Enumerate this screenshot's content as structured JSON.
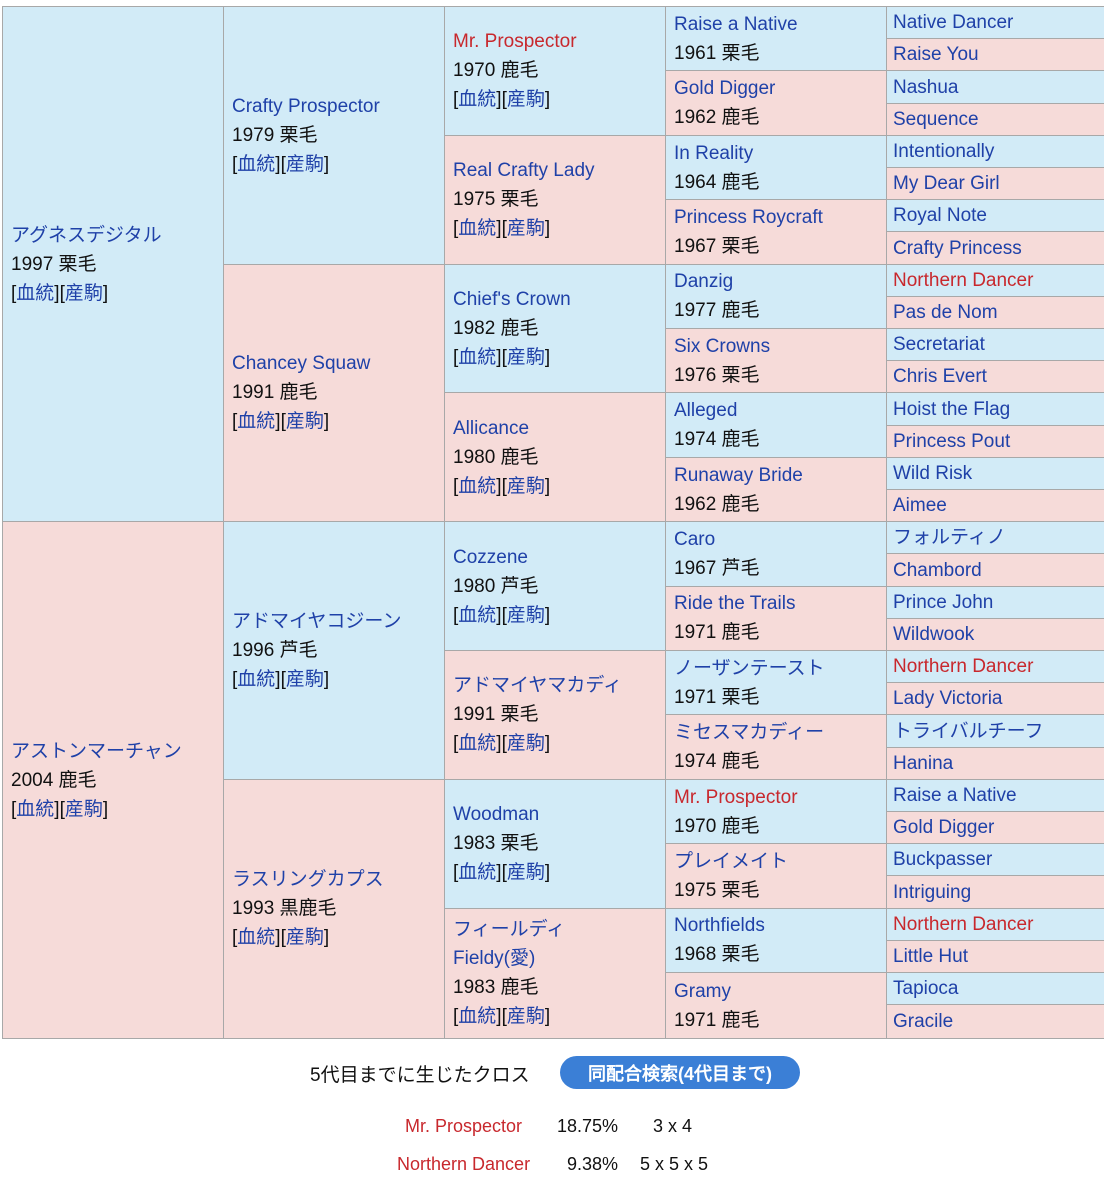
{
  "g1": [
    {
      "name": "アグネスデジタル",
      "year": "1997 栗毛",
      "sex": "m"
    },
    {
      "name": "アストンマーチャン",
      "year": "2004 鹿毛",
      "sex": "f"
    }
  ],
  "g2": [
    {
      "name": "Crafty Prospector",
      "year": "1979 栗毛",
      "sex": "m"
    },
    {
      "name": "Chancey Squaw",
      "year": "1991 鹿毛",
      "sex": "f"
    },
    {
      "name": "アドマイヤコジーン",
      "year": "1996 芦毛",
      "sex": "m"
    },
    {
      "name": "ラスリングカプス",
      "year": "1993 黒鹿毛",
      "sex": "f"
    }
  ],
  "g3": [
    {
      "name": "Mr. Prospector",
      "year": "1970 鹿毛",
      "sex": "m",
      "red": true
    },
    {
      "name": "Real Crafty Lady",
      "year": "1975 栗毛",
      "sex": "f"
    },
    {
      "name": "Chief's Crown",
      "year": "1982 鹿毛",
      "sex": "m"
    },
    {
      "name": "Allicance",
      "year": "1980 鹿毛",
      "sex": "f"
    },
    {
      "name": "Cozzene",
      "year": "1980 芦毛",
      "sex": "m"
    },
    {
      "name": "アドマイヤマカディ",
      "year": "1991 栗毛",
      "sex": "f"
    },
    {
      "name": "Woodman",
      "year": "1983 栗毛",
      "sex": "m"
    },
    {
      "name": "フィールディ",
      "name2": "Fieldy(愛)",
      "year": "1983 鹿毛",
      "sex": "f"
    }
  ],
  "g4": [
    {
      "name": "Raise a Native",
      "year": "1961 栗毛",
      "sex": "m"
    },
    {
      "name": "Gold Digger",
      "year": "1962 鹿毛",
      "sex": "f"
    },
    {
      "name": "In Reality",
      "year": "1964 鹿毛",
      "sex": "m"
    },
    {
      "name": "Princess Roycraft",
      "year": "1967 栗毛",
      "sex": "f"
    },
    {
      "name": "Danzig",
      "year": "1977 鹿毛",
      "sex": "m"
    },
    {
      "name": "Six Crowns",
      "year": "1976 栗毛",
      "sex": "f"
    },
    {
      "name": "Alleged",
      "year": "1974 鹿毛",
      "sex": "m"
    },
    {
      "name": "Runaway Bride",
      "year": "1962 鹿毛",
      "sex": "f"
    },
    {
      "name": "Caro",
      "year": "1967 芦毛",
      "sex": "m"
    },
    {
      "name": "Ride the Trails",
      "year": "1971 鹿毛",
      "sex": "f"
    },
    {
      "name": "ノーザンテースト",
      "year": "1971 栗毛",
      "sex": "m"
    },
    {
      "name": "ミセスマカディー",
      "year": "1974 鹿毛",
      "sex": "f"
    },
    {
      "name": "Mr. Prospector",
      "year": "1970 鹿毛",
      "sex": "m",
      "red": true
    },
    {
      "name": "プレイメイト",
      "year": "1975 栗毛",
      "sex": "f"
    },
    {
      "name": "Northfields",
      "year": "1968 栗毛",
      "sex": "m"
    },
    {
      "name": "Gramy",
      "year": "1971 鹿毛",
      "sex": "f"
    }
  ],
  "g5": [
    {
      "name": "Native Dancer",
      "sex": "m"
    },
    {
      "name": "Raise You",
      "sex": "f"
    },
    {
      "name": "Nashua",
      "sex": "m"
    },
    {
      "name": "Sequence",
      "sex": "f"
    },
    {
      "name": "Intentionally",
      "sex": "m"
    },
    {
      "name": "My Dear Girl",
      "sex": "f"
    },
    {
      "name": "Royal Note",
      "sex": "m"
    },
    {
      "name": "Crafty Princess",
      "sex": "f"
    },
    {
      "name": "Northern Dancer",
      "sex": "m",
      "red": true
    },
    {
      "name": "Pas de Nom",
      "sex": "f"
    },
    {
      "name": "Secretariat",
      "sex": "m"
    },
    {
      "name": "Chris Evert",
      "sex": "f"
    },
    {
      "name": "Hoist the Flag",
      "sex": "m"
    },
    {
      "name": "Princess Pout",
      "sex": "f"
    },
    {
      "name": "Wild Risk",
      "sex": "m"
    },
    {
      "name": "Aimee",
      "sex": "f"
    },
    {
      "name": "フォルティノ",
      "sex": "m"
    },
    {
      "name": "Chambord",
      "sex": "f"
    },
    {
      "name": "Prince John",
      "sex": "m"
    },
    {
      "name": "Wildwook",
      "sex": "f"
    },
    {
      "name": "Northern Dancer",
      "sex": "m",
      "red": true
    },
    {
      "name": "Lady Victoria",
      "sex": "f"
    },
    {
      "name": "トライバルチーフ",
      "sex": "m"
    },
    {
      "name": "Hanina",
      "sex": "f"
    },
    {
      "name": "Raise a Native",
      "sex": "m"
    },
    {
      "name": "Gold Digger",
      "sex": "f"
    },
    {
      "name": "Buckpasser",
      "sex": "m"
    },
    {
      "name": "Intriguing",
      "sex": "f"
    },
    {
      "name": "Northern Dancer",
      "sex": "m",
      "red": true
    },
    {
      "name": "Little Hut",
      "sex": "f"
    },
    {
      "name": "Tapioca",
      "sex": "m"
    },
    {
      "name": "Gracile",
      "sex": "f"
    }
  ],
  "links": {
    "pedigree": "血統",
    "progeny": "産駒"
  },
  "footer": {
    "cross_title": "5代目までに生じたクロス",
    "search_button": "同配合検索(4代目まで)",
    "crosses": [
      {
        "name": "Mr. Prospector",
        "percent": "18.75%",
        "gens": "3 x 4"
      },
      {
        "name": "Northern Dancer",
        "percent": "9.38%",
        "gens": "5 x 5 x 5"
      }
    ]
  },
  "colors": {
    "male_bg": "#d2ebf7",
    "female_bg": "#f6dbd9",
    "link": "#1f41a8",
    "highlight": "#c8282d"
  }
}
